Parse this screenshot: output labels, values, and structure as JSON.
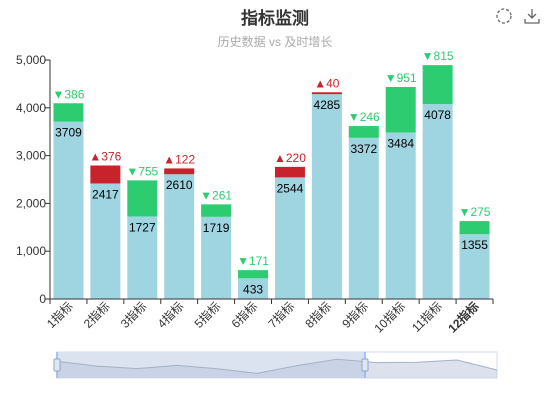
{
  "title": "指标监测",
  "subtitle": "历史数据 vs 及时增长",
  "toolbox": {
    "restore_icon": "restore-icon",
    "download_icon": "save-as-image-icon"
  },
  "colors": {
    "base": "#9fd4e1",
    "increase": "#c8232c",
    "decrease": "#2ecc71",
    "axis": "#333333",
    "grid": "#e0e6f1"
  },
  "chart_data": {
    "type": "bar",
    "stacked": true,
    "categories": [
      "1指标",
      "2指标",
      "3指标",
      "4指标",
      "5指标",
      "6指标",
      "7指标",
      "8指标",
      "9指标",
      "10指标",
      "11指标",
      "12指标"
    ],
    "highlighted_category": "12指标",
    "base_values": [
      3709,
      2417,
      1727,
      2610,
      1719,
      433,
      2544,
      4285,
      3372,
      3484,
      4078,
      1355
    ],
    "changes": [
      {
        "direction": "down",
        "value": 386
      },
      {
        "direction": "up",
        "value": 376
      },
      {
        "direction": "down",
        "value": 755
      },
      {
        "direction": "up",
        "value": 122
      },
      {
        "direction": "down",
        "value": 261
      },
      {
        "direction": "down",
        "value": 171
      },
      {
        "direction": "up",
        "value": 220
      },
      {
        "direction": "up",
        "value": 40
      },
      {
        "direction": "down",
        "value": 246
      },
      {
        "direction": "down",
        "value": 951
      },
      {
        "direction": "down",
        "value": 815
      },
      {
        "direction": "down",
        "value": 275
      }
    ],
    "ylim": [
      0,
      5000
    ],
    "yticks": [
      0,
      1000,
      2000,
      3000,
      4000,
      5000
    ],
    "ytick_labels": [
      "0",
      "1,000",
      "2,000",
      "3,000",
      "4,000",
      "5,000"
    ],
    "grid": false,
    "datazoom": {
      "start": 0,
      "end": 0.7
    },
    "arrows": {
      "up": "▲",
      "down": "▼"
    }
  }
}
